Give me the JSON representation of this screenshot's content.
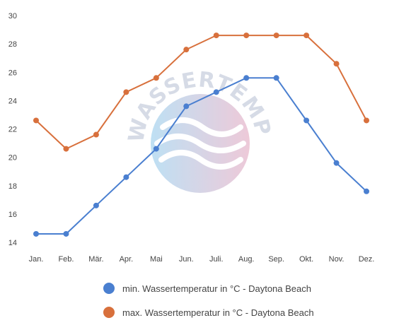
{
  "watermark": {
    "text": "WASSERTEMPERATUR.ORG",
    "colors": {
      "left": "#a9d6f0",
      "right": "#e8b8cc",
      "wave": "#ffffff"
    }
  },
  "chart_data": {
    "type": "line",
    "categories": [
      "Jan.",
      "Feb.",
      "Mär.",
      "Apr.",
      "Mai",
      "Jun.",
      "Juli.",
      "Aug.",
      "Sep.",
      "Okt.",
      "Nov.",
      "Dez."
    ],
    "ylim": [
      14,
      30
    ],
    "yticks": [
      14,
      16,
      18,
      20,
      22,
      24,
      26,
      28,
      30
    ],
    "grid": false,
    "legend_position": "bottom",
    "series": [
      {
        "name": "min. Wassertemperatur in °C - Daytona Beach",
        "color": "#4a7fd0",
        "values": [
          14.6,
          14.6,
          16.6,
          18.6,
          20.6,
          23.6,
          24.6,
          25.6,
          25.6,
          22.6,
          19.6,
          17.6
        ]
      },
      {
        "name": "max. Wassertemperatur in °C - Daytona Beach",
        "color": "#d8703c",
        "values": [
          22.6,
          20.6,
          21.6,
          24.6,
          25.6,
          27.6,
          28.6,
          28.6,
          28.6,
          28.6,
          26.6,
          22.6
        ]
      }
    ]
  }
}
